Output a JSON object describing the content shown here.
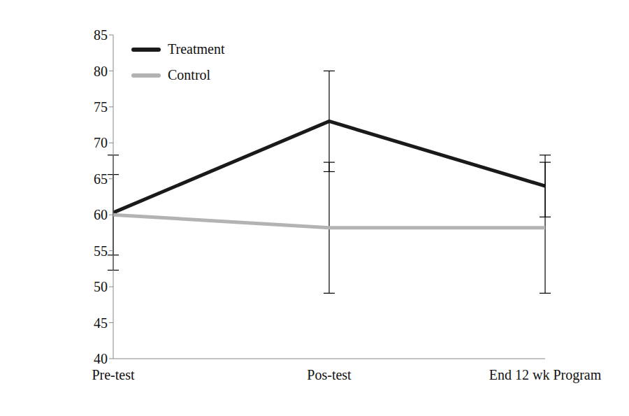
{
  "chart_data": {
    "type": "line",
    "categories": [
      "Pre-test",
      "Pos-test",
      "End 12 wk Program"
    ],
    "series": [
      {
        "name": "Treatment",
        "color": "#1a1a1a",
        "values": [
          60.3,
          73,
          64
        ],
        "errors": [
          8,
          7,
          4.3
        ]
      },
      {
        "name": "Control",
        "color": "#b3b3b3",
        "values": [
          60,
          58.2,
          58.2
        ],
        "errors": [
          5.6,
          9.1,
          9.1
        ]
      }
    ],
    "ylim": [
      40,
      85
    ],
    "yticks": [
      40,
      45,
      50,
      55,
      60,
      65,
      70,
      75,
      80,
      85
    ],
    "grid": false,
    "legend": "upper left"
  }
}
